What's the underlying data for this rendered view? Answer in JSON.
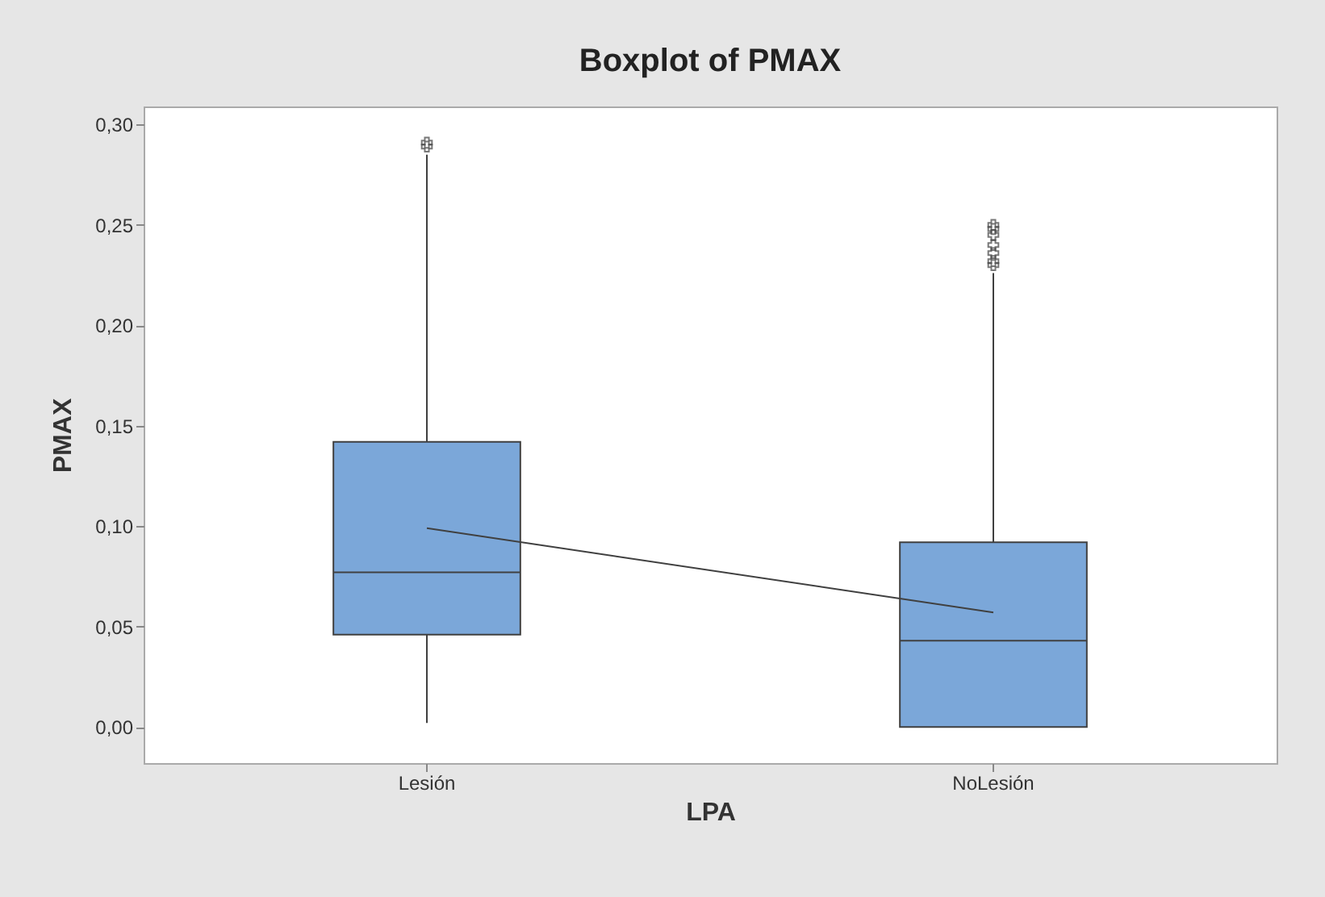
{
  "chart_data": {
    "type": "box",
    "title": "Boxplot of PMAX",
    "xlabel": "LPA",
    "ylabel": "PMAX",
    "categories": [
      "Lesión",
      "NoLesión"
    ],
    "series": [
      {
        "color": "#7ba7d9",
        "boxes": [
          {
            "low": 0.002,
            "q1": 0.046,
            "median": 0.077,
            "q3": 0.142,
            "high": 0.285,
            "outliers": [
              0.289,
              0.291
            ]
          },
          {
            "low": 0.0,
            "q1": 0.0,
            "median": 0.043,
            "q3": 0.092,
            "high": 0.226,
            "outliers": [
              0.23,
              0.232,
              0.236,
              0.24,
              0.245,
              0.248,
              0.25
            ]
          }
        ]
      },
      {
        "type": "line",
        "color": "#404040",
        "x": [
          "Lesión",
          "NoLesión"
        ],
        "values": [
          0.099,
          0.057
        ]
      }
    ],
    "ylim": [
      -0.018,
      0.309
    ],
    "yticks": [
      {
        "value": 0,
        "label": "0,00"
      },
      {
        "value": 0.05,
        "label": "0,05"
      },
      {
        "value": 0.1,
        "label": "0,10"
      },
      {
        "value": 0.15,
        "label": "0,15"
      },
      {
        "value": 0.2,
        "label": "0,20"
      },
      {
        "value": 0.25,
        "label": "0,25"
      },
      {
        "value": 0.3,
        "label": "0,30"
      }
    ],
    "grid": false
  }
}
